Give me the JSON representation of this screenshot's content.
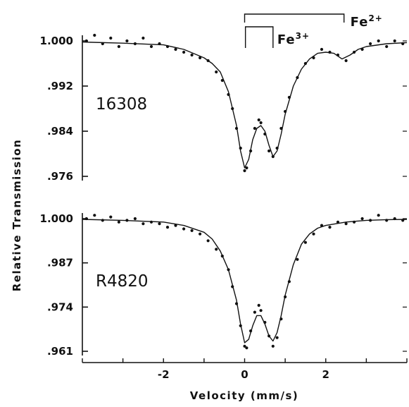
{
  "chart_data": [
    {
      "type": "scatter",
      "sample_label": "16308",
      "xlim": [
        -4,
        4
      ],
      "ylim": [
        0.976,
        1.0
      ],
      "y_ticks": [
        1.0,
        0.992,
        0.984,
        0.976
      ],
      "y_tick_labels": [
        "1.000",
        ".992",
        ".984",
        ".976"
      ],
      "annotations": [
        {
          "label": "Fe",
          "sup": "2+",
          "x_range": [
            0.0,
            2.45
          ]
        },
        {
          "label": "Fe",
          "sup": "3+",
          "x_range": [
            0.02,
            0.7
          ]
        }
      ],
      "fit_curve": {
        "x": [
          -4.0,
          -3.0,
          -2.0,
          -1.5,
          -1.0,
          -0.8,
          -0.6,
          -0.4,
          -0.2,
          -0.1,
          0.0,
          0.1,
          0.2,
          0.3,
          0.4,
          0.5,
          0.6,
          0.7,
          0.8,
          0.9,
          1.0,
          1.2,
          1.4,
          1.6,
          1.8,
          2.0,
          2.2,
          2.4,
          2.6,
          2.8,
          3.0,
          3.5,
          4.0
        ],
        "y": [
          0.9998,
          0.9996,
          0.9993,
          0.9985,
          0.997,
          0.996,
          0.9945,
          0.991,
          0.985,
          0.9805,
          0.9775,
          0.979,
          0.9825,
          0.9845,
          0.985,
          0.984,
          0.9815,
          0.9795,
          0.9805,
          0.9835,
          0.987,
          0.992,
          0.995,
          0.9968,
          0.9978,
          0.998,
          0.9978,
          0.9968,
          0.9975,
          0.9985,
          0.999,
          0.9995,
          0.9997
        ]
      },
      "points": {
        "x": [
          -3.9,
          -3.7,
          -3.5,
          -3.3,
          -3.1,
          -2.9,
          -2.7,
          -2.5,
          -2.3,
          -2.1,
          -1.9,
          -1.7,
          -1.5,
          -1.3,
          -1.1,
          -0.9,
          -0.7,
          -0.55,
          -0.4,
          -0.3,
          -0.2,
          -0.1,
          0.0,
          0.05,
          0.15,
          0.25,
          0.35,
          0.4,
          0.5,
          0.6,
          0.7,
          0.8,
          0.9,
          1.0,
          1.1,
          1.3,
          1.5,
          1.7,
          1.9,
          2.1,
          2.3,
          2.5,
          2.7,
          2.9,
          3.1,
          3.3,
          3.5,
          3.7,
          3.9
        ],
        "y": [
          1.0,
          1.001,
          0.9995,
          1.0005,
          0.999,
          1.0,
          0.9995,
          1.0005,
          0.999,
          0.9995,
          0.999,
          0.9985,
          0.998,
          0.9975,
          0.997,
          0.9965,
          0.9945,
          0.993,
          0.9905,
          0.988,
          0.9845,
          0.981,
          0.977,
          0.9775,
          0.9805,
          0.9845,
          0.986,
          0.9855,
          0.9835,
          0.9805,
          0.9795,
          0.981,
          0.9845,
          0.9875,
          0.99,
          0.9935,
          0.996,
          0.997,
          0.9985,
          0.998,
          0.9975,
          0.9965,
          0.998,
          0.9985,
          0.9995,
          1.0,
          0.999,
          1.0,
          0.9995
        ]
      }
    },
    {
      "type": "scatter",
      "sample_label": "R4820",
      "xlim": [
        -4,
        4
      ],
      "ylim": [
        0.961,
        1.0
      ],
      "x_ticks": [
        -2,
        0,
        2
      ],
      "x_tick_labels": [
        "-2",
        "0",
        "2"
      ],
      "y_ticks": [
        1.0,
        0.987,
        0.974,
        0.961
      ],
      "y_tick_labels": [
        "1.000",
        ".987",
        ".974",
        ".961"
      ],
      "fit_curve": {
        "x": [
          -4.0,
          -3.0,
          -2.0,
          -1.5,
          -1.0,
          -0.8,
          -0.6,
          -0.4,
          -0.2,
          -0.1,
          0.0,
          0.1,
          0.2,
          0.3,
          0.4,
          0.5,
          0.6,
          0.7,
          0.8,
          0.9,
          1.0,
          1.2,
          1.4,
          1.6,
          1.8,
          2.0,
          2.5,
          3.0,
          3.5,
          4.0
        ],
        "y": [
          0.9998,
          0.9995,
          0.999,
          0.998,
          0.996,
          0.994,
          0.9905,
          0.985,
          0.976,
          0.969,
          0.9635,
          0.9645,
          0.9685,
          0.9715,
          0.9715,
          0.969,
          0.9655,
          0.964,
          0.9665,
          0.9715,
          0.9775,
          0.9865,
          0.9925,
          0.9955,
          0.9972,
          0.998,
          0.999,
          0.9995,
          0.9997,
          0.9998
        ]
      },
      "points": {
        "x": [
          -3.9,
          -3.7,
          -3.5,
          -3.3,
          -3.1,
          -2.9,
          -2.7,
          -2.5,
          -2.3,
          -2.1,
          -1.9,
          -1.7,
          -1.5,
          -1.3,
          -1.1,
          -0.9,
          -0.7,
          -0.55,
          -0.4,
          -0.3,
          -0.2,
          -0.1,
          0.0,
          0.05,
          0.15,
          0.25,
          0.35,
          0.4,
          0.5,
          0.6,
          0.7,
          0.8,
          0.9,
          1.0,
          1.1,
          1.3,
          1.5,
          1.7,
          1.9,
          2.1,
          2.3,
          2.5,
          2.7,
          2.9,
          3.1,
          3.3,
          3.5,
          3.7,
          3.9
        ],
        "y": [
          1.0,
          1.001,
          0.9995,
          1.0005,
          0.999,
          0.9995,
          1.0,
          0.9985,
          0.999,
          0.9985,
          0.9975,
          0.998,
          0.997,
          0.9965,
          0.9955,
          0.9935,
          0.991,
          0.989,
          0.985,
          0.98,
          0.975,
          0.9685,
          0.9625,
          0.962,
          0.967,
          0.9725,
          0.9745,
          0.973,
          0.9695,
          0.9655,
          0.9625,
          0.965,
          0.9705,
          0.977,
          0.9815,
          0.988,
          0.993,
          0.9955,
          0.998,
          0.9975,
          0.999,
          0.9985,
          0.999,
          1.0,
          0.9995,
          1.001,
          0.9995,
          1.0,
          0.9995
        ]
      }
    }
  ],
  "xlabel": "Velocity (mm/s)",
  "ylabel": "Relative Transmission"
}
